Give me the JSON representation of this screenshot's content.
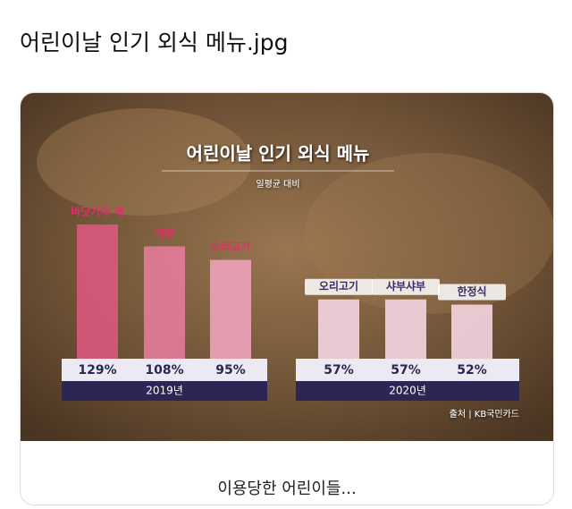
{
  "post": {
    "title": "어린이날 인기 외식 메뉴.jpg",
    "caption": "이용당한 어린이들..."
  },
  "chart_data": {
    "type": "bar",
    "title": "어린이날 인기 외식 메뉴",
    "subtitle": "일평균 대비",
    "source": "출처 | KB국민카드",
    "series": [
      {
        "name": "2019년",
        "categories": [
          "바닷가재 게",
          "게장",
          "오리고기"
        ],
        "values": [
          129,
          108,
          95
        ],
        "value_labels": [
          "129%",
          "108%",
          "95%"
        ],
        "colors": [
          "#d9587c",
          "#e27b98",
          "#eaa2b8"
        ]
      },
      {
        "name": "2020년",
        "categories": [
          "오리고기",
          "샤부샤부",
          "한정식"
        ],
        "values": [
          57,
          57,
          52
        ],
        "value_labels": [
          "57%",
          "57%",
          "52%"
        ],
        "colors": [
          "#f2d3de",
          "#f2d3de",
          "#f2d3de"
        ]
      }
    ]
  }
}
